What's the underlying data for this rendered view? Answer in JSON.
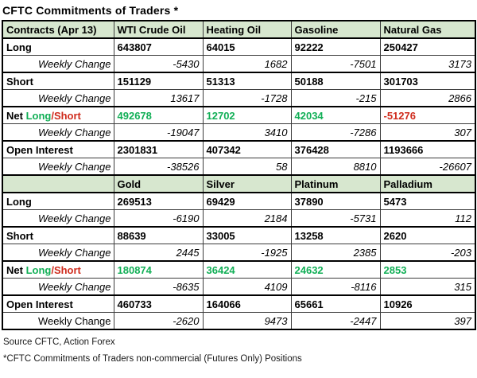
{
  "title": "CFTC Commitments of Traders *",
  "colors": {
    "header_bg": "#d7e7cf",
    "green": "#11af56",
    "red": "#cf2b1c",
    "black": "#000000"
  },
  "footer": {
    "source": "Source CFTC, Action Forex",
    "note": "*CFTC Commitments of Traders non-commercial (Futures Only) Positions"
  },
  "chart_data": {
    "type": "table",
    "sections": [
      {
        "header": [
          "Contracts (Apr 13)",
          "WTI Crude Oil",
          "Heating Oil",
          "Gasoline",
          "Natural Gas"
        ],
        "rows": [
          {
            "type": "value",
            "label": "Long",
            "values": [
              "643807",
              "64015",
              "92222",
              "250427"
            ]
          },
          {
            "type": "change",
            "label": "Weekly Change",
            "label_italic": true,
            "values": [
              "-5430",
              "1682",
              "-7501",
              "3173"
            ]
          },
          {
            "type": "value",
            "label": "Short",
            "values": [
              "151129",
              "51313",
              "50188",
              "301703"
            ]
          },
          {
            "type": "change",
            "label": "Weekly Change",
            "label_italic": true,
            "values": [
              "13617",
              "-1728",
              "-215",
              "2866"
            ]
          },
          {
            "type": "net",
            "label_parts": [
              {
                "text": "Net ",
                "color": "black"
              },
              {
                "text": "Long",
                "color": "green"
              },
              {
                "text": "/Short",
                "color": "red"
              }
            ],
            "values": [
              "492678",
              "12702",
              "42034",
              "-51276"
            ],
            "values_colors": [
              "green",
              "green",
              "green",
              "red"
            ]
          },
          {
            "type": "change",
            "label": "Weekly Change",
            "label_italic": true,
            "values": [
              "-19047",
              "3410",
              "-7286",
              "307"
            ]
          },
          {
            "type": "value",
            "label": "Open Interest",
            "values": [
              "2301831",
              "407342",
              "376428",
              "1193666"
            ]
          },
          {
            "type": "change",
            "label": "Weekly Change",
            "label_italic": true,
            "values": [
              "-38526",
              "58",
              "8810",
              "-26607"
            ]
          }
        ]
      },
      {
        "header": [
          "",
          "Gold",
          "Silver",
          "Platinum",
          "Palladium"
        ],
        "rows": [
          {
            "type": "value",
            "label": "Long",
            "values": [
              "269513",
              "69429",
              "37890",
              "5473"
            ]
          },
          {
            "type": "change",
            "label": "Weekly Change",
            "label_italic": true,
            "values": [
              "-6190",
              "2184",
              "-5731",
              "112"
            ]
          },
          {
            "type": "value",
            "label": "Short",
            "values": [
              "88639",
              "33005",
              "13258",
              "2620"
            ]
          },
          {
            "type": "change",
            "label": "Weekly Change",
            "label_italic": true,
            "values": [
              "2445",
              "-1925",
              "2385",
              "-203"
            ]
          },
          {
            "type": "net",
            "label_parts": [
              {
                "text": "Net ",
                "color": "black"
              },
              {
                "text": "Long",
                "color": "green"
              },
              {
                "text": "/Short",
                "color": "red"
              }
            ],
            "values": [
              "180874",
              "36424",
              "24632",
              "2853"
            ],
            "values_colors": [
              "green",
              "green",
              "green",
              "green"
            ]
          },
          {
            "type": "change",
            "label": "Weekly Change",
            "label_italic": true,
            "values": [
              "-8635",
              "4109",
              "-8116",
              "315"
            ]
          },
          {
            "type": "value",
            "label": "Open Interest",
            "values": [
              "460733",
              "164066",
              "65661",
              "10926"
            ]
          },
          {
            "type": "change",
            "label": "Weekly Change",
            "label_italic": false,
            "values": [
              "-2620",
              "9473",
              "-2447",
              "397"
            ]
          }
        ]
      }
    ]
  }
}
